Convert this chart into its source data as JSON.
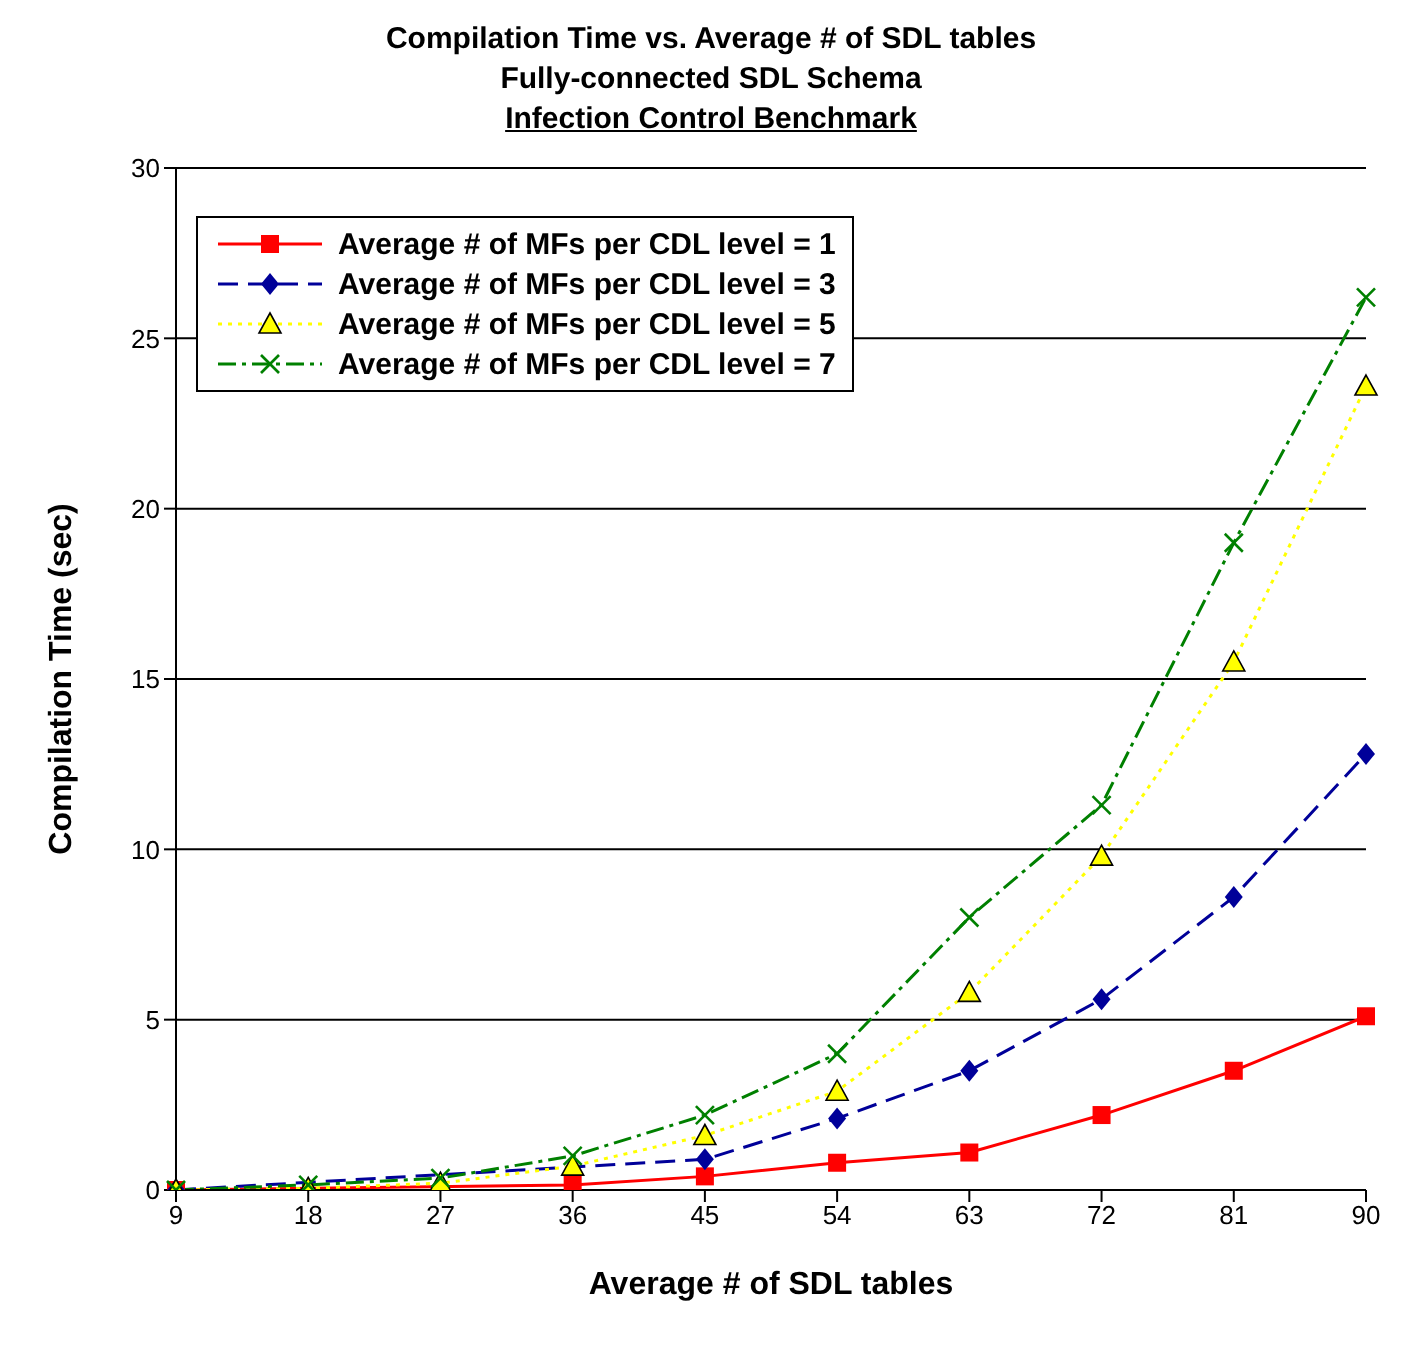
{
  "chart_data": {
    "type": "line",
    "title": "Compilation Time vs. Average # of SDL tables",
    "subtitle": "Fully-connected SDL Schema\nInfection Control Benchmark",
    "xlabel": "Average # of SDL tables",
    "ylabel": "Compilation Time (sec)",
    "categories": [
      "9",
      "18",
      "27",
      "36",
      "45",
      "54",
      "63",
      "72",
      "81",
      "90"
    ],
    "series": [
      {
        "name": "Average # of MFs per CDL level = 1",
        "color": "#ff0000",
        "marker": "square",
        "line_style": "solid",
        "values": [
          0,
          null,
          null,
          0.15,
          0.4,
          0.8,
          1.1,
          2.2,
          3.5,
          5.1
        ]
      },
      {
        "name": "Average # of MFs per CDL level = 3",
        "color": "#000099",
        "marker": "diamond",
        "line_style": "dashed",
        "values": [
          0,
          null,
          null,
          null,
          0.9,
          2.1,
          3.5,
          5.6,
          8.6,
          12.8
        ]
      },
      {
        "name": "Average # of MFs per CDL level = 5",
        "color": "#ffff00",
        "marker": "triangle",
        "line_style": "dotted",
        "values": [
          0,
          0.05,
          0.2,
          0.7,
          1.6,
          2.9,
          5.8,
          9.8,
          15.5,
          23.6
        ]
      },
      {
        "name": "Average # of MFs per CDL level = 7",
        "color": "#008000",
        "marker": "cross",
        "line_style": "dashdot",
        "values": [
          0,
          0.15,
          0.35,
          1.0,
          2.2,
          4.0,
          8.0,
          11.3,
          19.0,
          26.2
        ]
      }
    ],
    "ylim": [
      0,
      30
    ],
    "yticks": [
      0,
      5,
      10,
      15,
      20,
      25,
      30
    ],
    "grid": "y",
    "legend": "top left"
  }
}
